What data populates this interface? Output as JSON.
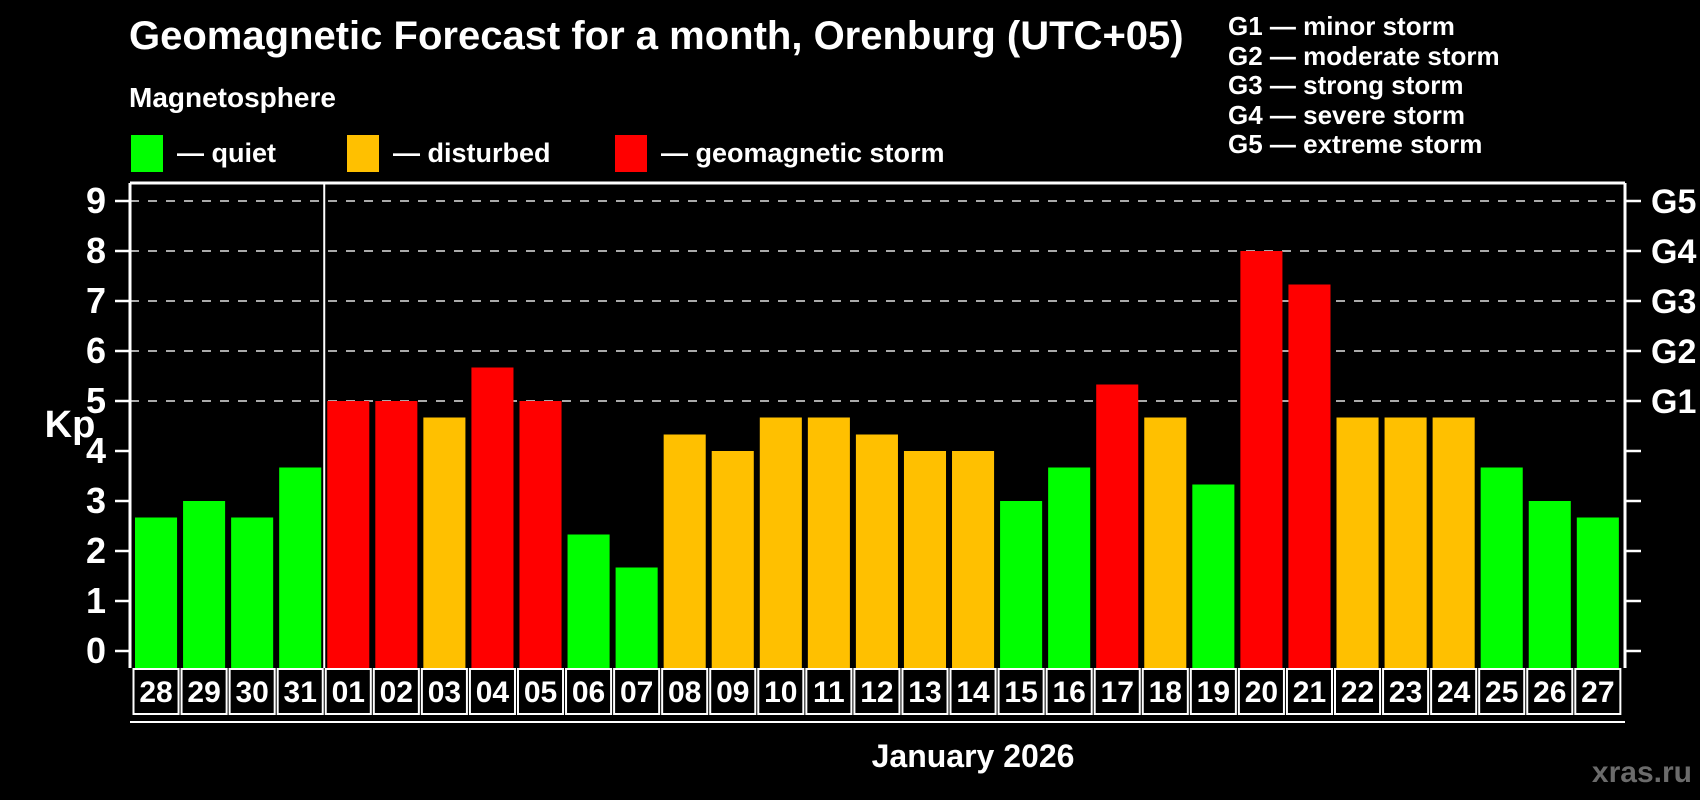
{
  "header": {
    "title": "Geomagnetic Forecast for a month, Orenburg (UTC+05)",
    "subtitle": "Magnetosphere"
  },
  "legend": {
    "items": [
      {
        "key": "quiet",
        "label": "— quiet",
        "color": "#00ff00"
      },
      {
        "key": "disturbed",
        "label": "— disturbed",
        "color": "#ffc000"
      },
      {
        "key": "storm",
        "label": "— geomagnetic storm",
        "color": "#ff0000"
      }
    ]
  },
  "g_legend": {
    "lines": [
      "G1 — minor storm",
      "G2 — moderate storm",
      "G3 — strong storm",
      "G4 — severe storm",
      "G5 — extreme storm"
    ]
  },
  "footer": {
    "month_label": "January 2026",
    "watermark": "xras.ru"
  },
  "colors": {
    "background": "#000000",
    "frame": "#ffffff",
    "grid": "#aaaaaa",
    "watermark": "#6b6b6b",
    "quiet": "#00ff00",
    "disturbed": "#ffc000",
    "storm": "#ff0000"
  },
  "chart_data": {
    "type": "bar",
    "title": "Geomagnetic Forecast for a month, Orenburg (UTC+05)",
    "y_axis_label": "Kp",
    "ylim": [
      0,
      9
    ],
    "y_ticks": [
      0,
      1,
      2,
      3,
      4,
      5,
      6,
      7,
      8,
      9
    ],
    "right_axis": [
      {
        "label": "G1",
        "kp": 5
      },
      {
        "label": "G2",
        "kp": 6
      },
      {
        "label": "G3",
        "kp": 7
      },
      {
        "label": "G4",
        "kp": 8
      },
      {
        "label": "G5",
        "kp": 9
      }
    ],
    "grid": "horizontal dashed lines at Kp 5-9 (G1-G5 levels) only",
    "legend_position": "top-left",
    "categories": [
      "28",
      "29",
      "30",
      "31",
      "01",
      "02",
      "03",
      "04",
      "05",
      "06",
      "07",
      "08",
      "09",
      "10",
      "11",
      "12",
      "13",
      "14",
      "15",
      "16",
      "17",
      "18",
      "19",
      "20",
      "21",
      "22",
      "23",
      "24",
      "25",
      "26",
      "27"
    ],
    "values": [
      2.67,
      3.0,
      2.67,
      3.67,
      5.0,
      5.0,
      4.67,
      5.67,
      5.0,
      2.33,
      1.67,
      4.33,
      4.0,
      4.67,
      4.67,
      4.33,
      4.0,
      4.0,
      3.0,
      3.67,
      5.33,
      4.67,
      3.33,
      8.0,
      7.33,
      4.67,
      4.67,
      4.67,
      3.67,
      3.0,
      2.67
    ],
    "statuses": [
      "quiet",
      "quiet",
      "quiet",
      "quiet",
      "storm",
      "storm",
      "disturbed",
      "storm",
      "storm",
      "quiet",
      "quiet",
      "disturbed",
      "disturbed",
      "disturbed",
      "disturbed",
      "disturbed",
      "disturbed",
      "disturbed",
      "quiet",
      "quiet",
      "storm",
      "disturbed",
      "quiet",
      "storm",
      "storm",
      "disturbed",
      "disturbed",
      "disturbed",
      "quiet",
      "quiet",
      "quiet"
    ],
    "separator_index": 4
  }
}
